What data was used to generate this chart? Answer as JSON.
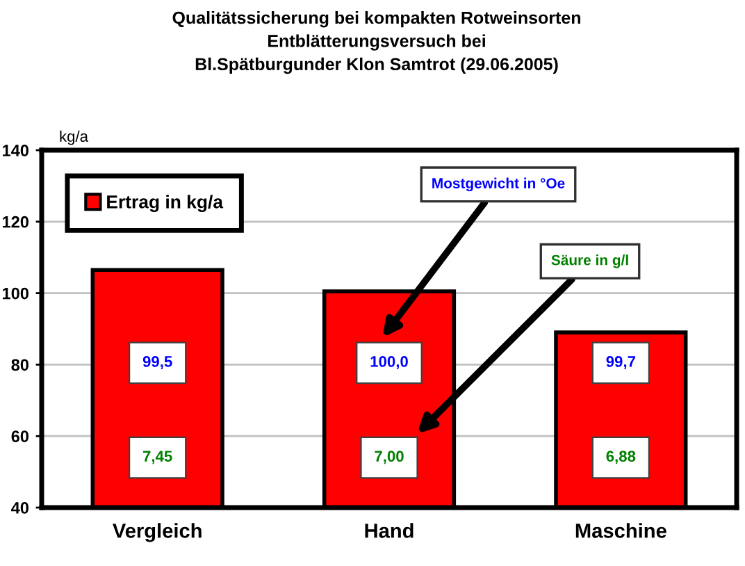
{
  "chart_data": {
    "type": "bar",
    "title": "Qualitätssicherung bei kompakten Rotweinsorten\nEntblätterungsversuch bei\nBl.Spätburgunder Klon Samtrot (29.06.2005)",
    "ylabel": "kg/a",
    "categories": [
      "Vergleich",
      "Hand",
      "Maschine"
    ],
    "series": [
      {
        "name": "Ertrag in kg/a",
        "color": "#ff0000",
        "values": [
          106.5,
          100.5,
          89
        ]
      }
    ],
    "ylim": [
      40,
      140
    ],
    "yticks": [
      40,
      60,
      80,
      100,
      120,
      140
    ],
    "grid": "y",
    "legend": "top left",
    "annotations": [
      "Mostgewicht in °Oe",
      "Säure in g/l",
      "99,5",
      "100,0",
      "99,7",
      "7,45",
      "7,00",
      "6,88"
    ]
  }
}
